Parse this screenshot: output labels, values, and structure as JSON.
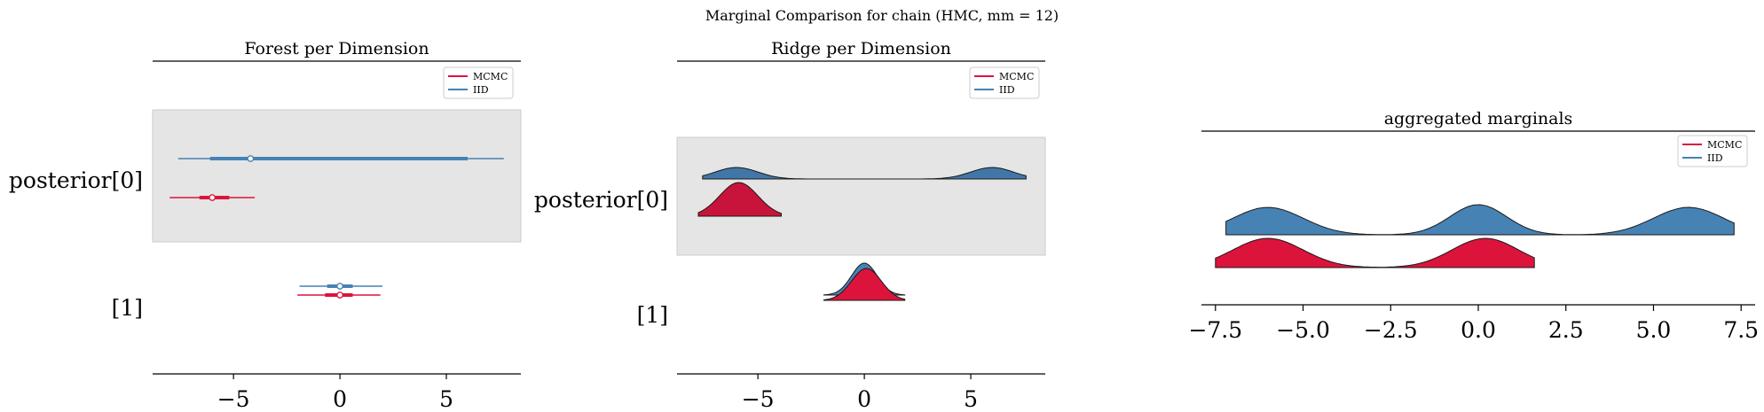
{
  "suptitle": "Marginal Comparison for chain (HMC, mm = 12)",
  "colors": {
    "mcmc": "#dc143c",
    "iid": "#4682b4",
    "band": "#e5e5e5"
  },
  "legend": {
    "mcmc": "MCMC",
    "iid": "IID"
  },
  "chart_data": [
    {
      "type": "forest",
      "title": "Forest per Dimension",
      "xlim": [
        -8.8,
        8.5
      ],
      "xticks": [
        -5,
        0,
        5
      ],
      "xtick_labels": [
        "−5",
        "0",
        "5"
      ],
      "categories": [
        "posterior[0]",
        "[1]"
      ],
      "legend_placement": "top-right",
      "series": [
        {
          "name": "MCMC",
          "rows": [
            {
              "hdi": [
                -8.0,
                -4.0
              ],
              "iqr": [
                -6.6,
                -5.2
              ],
              "median": -6.0
            },
            {
              "hdi": [
                -2.0,
                1.9
              ],
              "iqr": [
                -0.7,
                0.6
              ],
              "median": 0.0
            }
          ]
        },
        {
          "name": "IID",
          "rows": [
            {
              "hdi": [
                -7.6,
                7.7
              ],
              "iqr": [
                -6.1,
                6.0
              ],
              "median": -4.2
            },
            {
              "hdi": [
                -1.9,
                2.0
              ],
              "iqr": [
                -0.6,
                0.6
              ],
              "median": 0.0
            }
          ]
        }
      ]
    },
    {
      "type": "ridgeplot",
      "title": "Ridge per Dimension",
      "xlim": [
        -8.8,
        8.5
      ],
      "xticks": [
        -5,
        0,
        5
      ],
      "xtick_labels": [
        "−5",
        "0",
        "5"
      ],
      "categories": [
        "posterior[0]",
        "[1]"
      ],
      "legend_placement": "top-right",
      "series": [
        {
          "name": "IID",
          "rows": [
            {
              "range": [
                -7.6,
                7.6
              ],
              "components": [
                {
                  "mu": -6.0,
                  "sd": 1.0,
                  "w": 1
                },
                {
                  "mu": 6.0,
                  "sd": 1.0,
                  "w": 1
                }
              ]
            },
            {
              "range": [
                -1.9,
                1.9
              ],
              "components": [
                {
                  "mu": 0.0,
                  "sd": 0.6,
                  "w": 1
                }
              ]
            }
          ]
        },
        {
          "name": "MCMC",
          "rows": [
            {
              "range": [
                -7.8,
                -3.9
              ],
              "components": [
                {
                  "mu": -5.9,
                  "sd": 0.9,
                  "w": 1
                }
              ]
            },
            {
              "range": [
                -1.9,
                1.9
              ],
              "components": [
                {
                  "mu": 0.1,
                  "sd": 0.7,
                  "w": 1
                }
              ]
            }
          ]
        }
      ]
    },
    {
      "type": "area",
      "title": "aggregated marginals",
      "xlim": [
        -7.9,
        7.9
      ],
      "xticks": [
        -7.5,
        -5.0,
        -2.5,
        0.0,
        2.5,
        5.0,
        7.5
      ],
      "xtick_labels": [
        "−7.5",
        "−5.0",
        "−2.5",
        "0.0",
        "2.5",
        "5.0",
        "7.5"
      ],
      "legend_placement": "top-right",
      "series": [
        {
          "name": "IID",
          "range": [
            -7.2,
            7.3
          ],
          "components": [
            {
              "mu": -6.0,
              "sd": 1.0,
              "w": 1
            },
            {
              "mu": 0.0,
              "sd": 0.8,
              "w": 1.1
            },
            {
              "mu": 6.0,
              "sd": 1.0,
              "w": 1
            }
          ]
        },
        {
          "name": "MCMC",
          "range": [
            -7.5,
            1.6
          ],
          "components": [
            {
              "mu": -6.0,
              "sd": 1.0,
              "w": 1
            },
            {
              "mu": 0.2,
              "sd": 0.95,
              "w": 1
            }
          ]
        }
      ]
    }
  ]
}
